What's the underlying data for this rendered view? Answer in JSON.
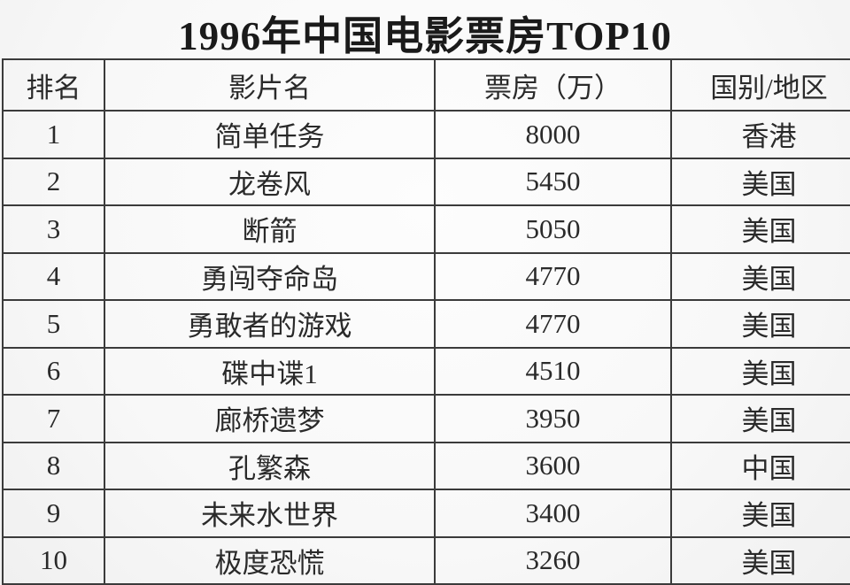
{
  "title": "1996年中国电影票房TOP10",
  "table": {
    "columns": [
      "排名",
      "影片名",
      "票房（万）",
      "国别/地区"
    ],
    "rows": [
      {
        "rank": "1",
        "film": "简单任务",
        "box_office": "8000",
        "region": "香港"
      },
      {
        "rank": "2",
        "film": "龙卷风",
        "box_office": "5450",
        "region": "美国"
      },
      {
        "rank": "3",
        "film": "断箭",
        "box_office": "5050",
        "region": "美国"
      },
      {
        "rank": "4",
        "film": "勇闯夺命岛",
        "box_office": "4770",
        "region": "美国"
      },
      {
        "rank": "5",
        "film": "勇敢者的游戏",
        "box_office": "4770",
        "region": "美国"
      },
      {
        "rank": "6",
        "film": "碟中谍1",
        "box_office": "4510",
        "region": "美国"
      },
      {
        "rank": "7",
        "film": "廊桥遗梦",
        "box_office": "3950",
        "region": "美国"
      },
      {
        "rank": "8",
        "film": "孔繁森",
        "box_office": "3600",
        "region": "中国"
      },
      {
        "rank": "9",
        "film": "未来水世界",
        "box_office": "3400",
        "region": "美国"
      },
      {
        "rank": "10",
        "film": "极度恐慌",
        "box_office": "3260",
        "region": "美国"
      }
    ]
  },
  "colors": {
    "border": "#3b3b3b",
    "text": "#2a2a2a",
    "background": "#f8f8f8"
  },
  "chart_data": {
    "type": "table",
    "title": "1996年中国电影票房TOP10",
    "columns": [
      "排名",
      "影片名",
      "票房（万）",
      "国别/地区"
    ],
    "rows": [
      [
        1,
        "简单任务",
        8000,
        "香港"
      ],
      [
        2,
        "龙卷风",
        5450,
        "美国"
      ],
      [
        3,
        "断箭",
        5050,
        "美国"
      ],
      [
        4,
        "勇闯夺命岛",
        4770,
        "美国"
      ],
      [
        5,
        "勇敢者的游戏",
        4770,
        "美国"
      ],
      [
        6,
        "碟中谍1",
        4510,
        "美国"
      ],
      [
        7,
        "廊桥遗梦",
        3950,
        "美国"
      ],
      [
        8,
        "孔繁森",
        3600,
        "中国"
      ],
      [
        9,
        "未来水世界",
        3400,
        "美国"
      ],
      [
        10,
        "极度恐慌",
        3260,
        "美国"
      ]
    ],
    "units": "万 (ten-thousand CNY)",
    "notes": "Static ranking table; bottom edge of last row and right table border are cropped by the image frame."
  }
}
